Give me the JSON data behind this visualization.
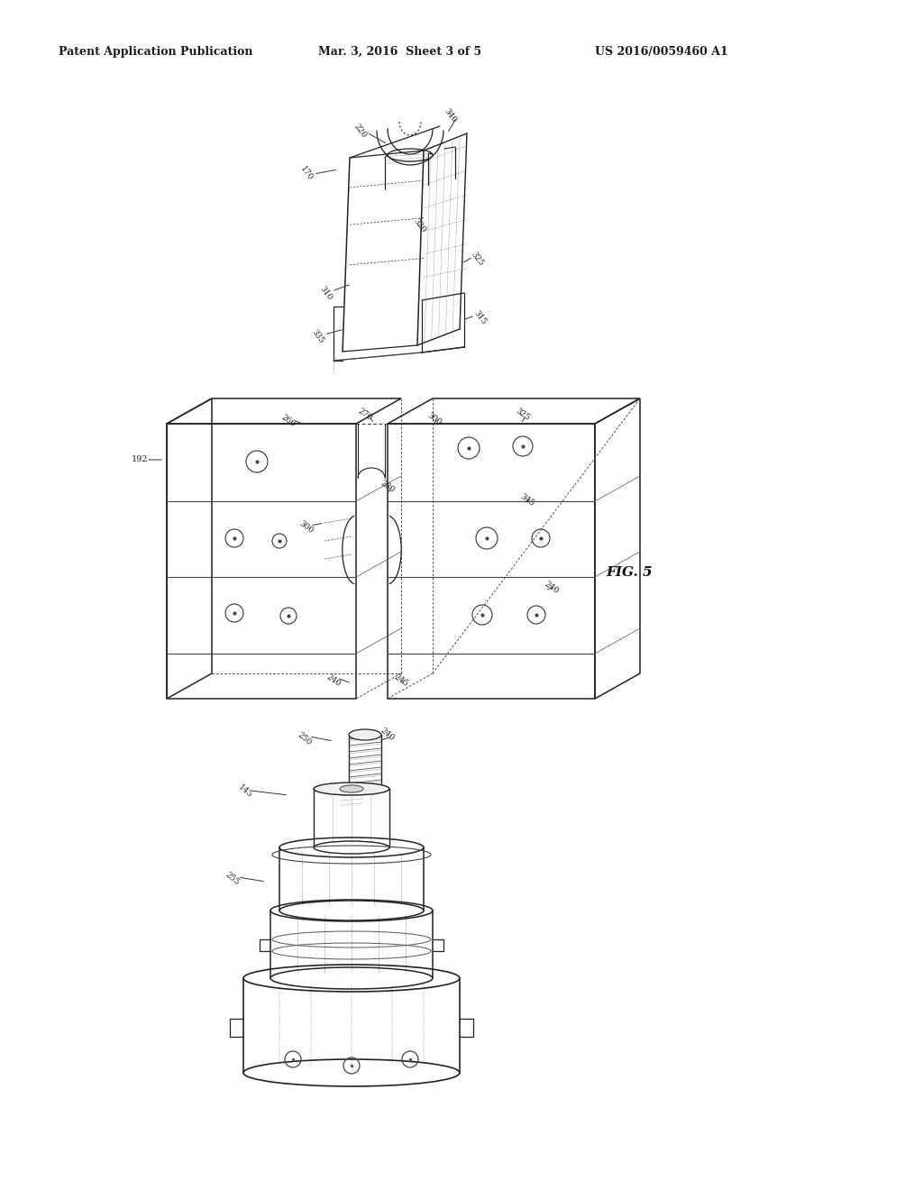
{
  "bg_color": "#ffffff",
  "header_left": "Patent Application Publication",
  "header_mid": "Mar. 3, 2016  Sheet 3 of 5",
  "header_right": "US 2016/0059460 A1",
  "fig_label": "FIG. 5",
  "header_fontsize": 9,
  "fig_label_fontsize": 11,
  "line_color": "#222222",
  "dash_color": "#555555",
  "dot_color": "#888888",
  "lw_main": 1.1,
  "lw_thin": 0.7,
  "lw_dot": 0.6
}
